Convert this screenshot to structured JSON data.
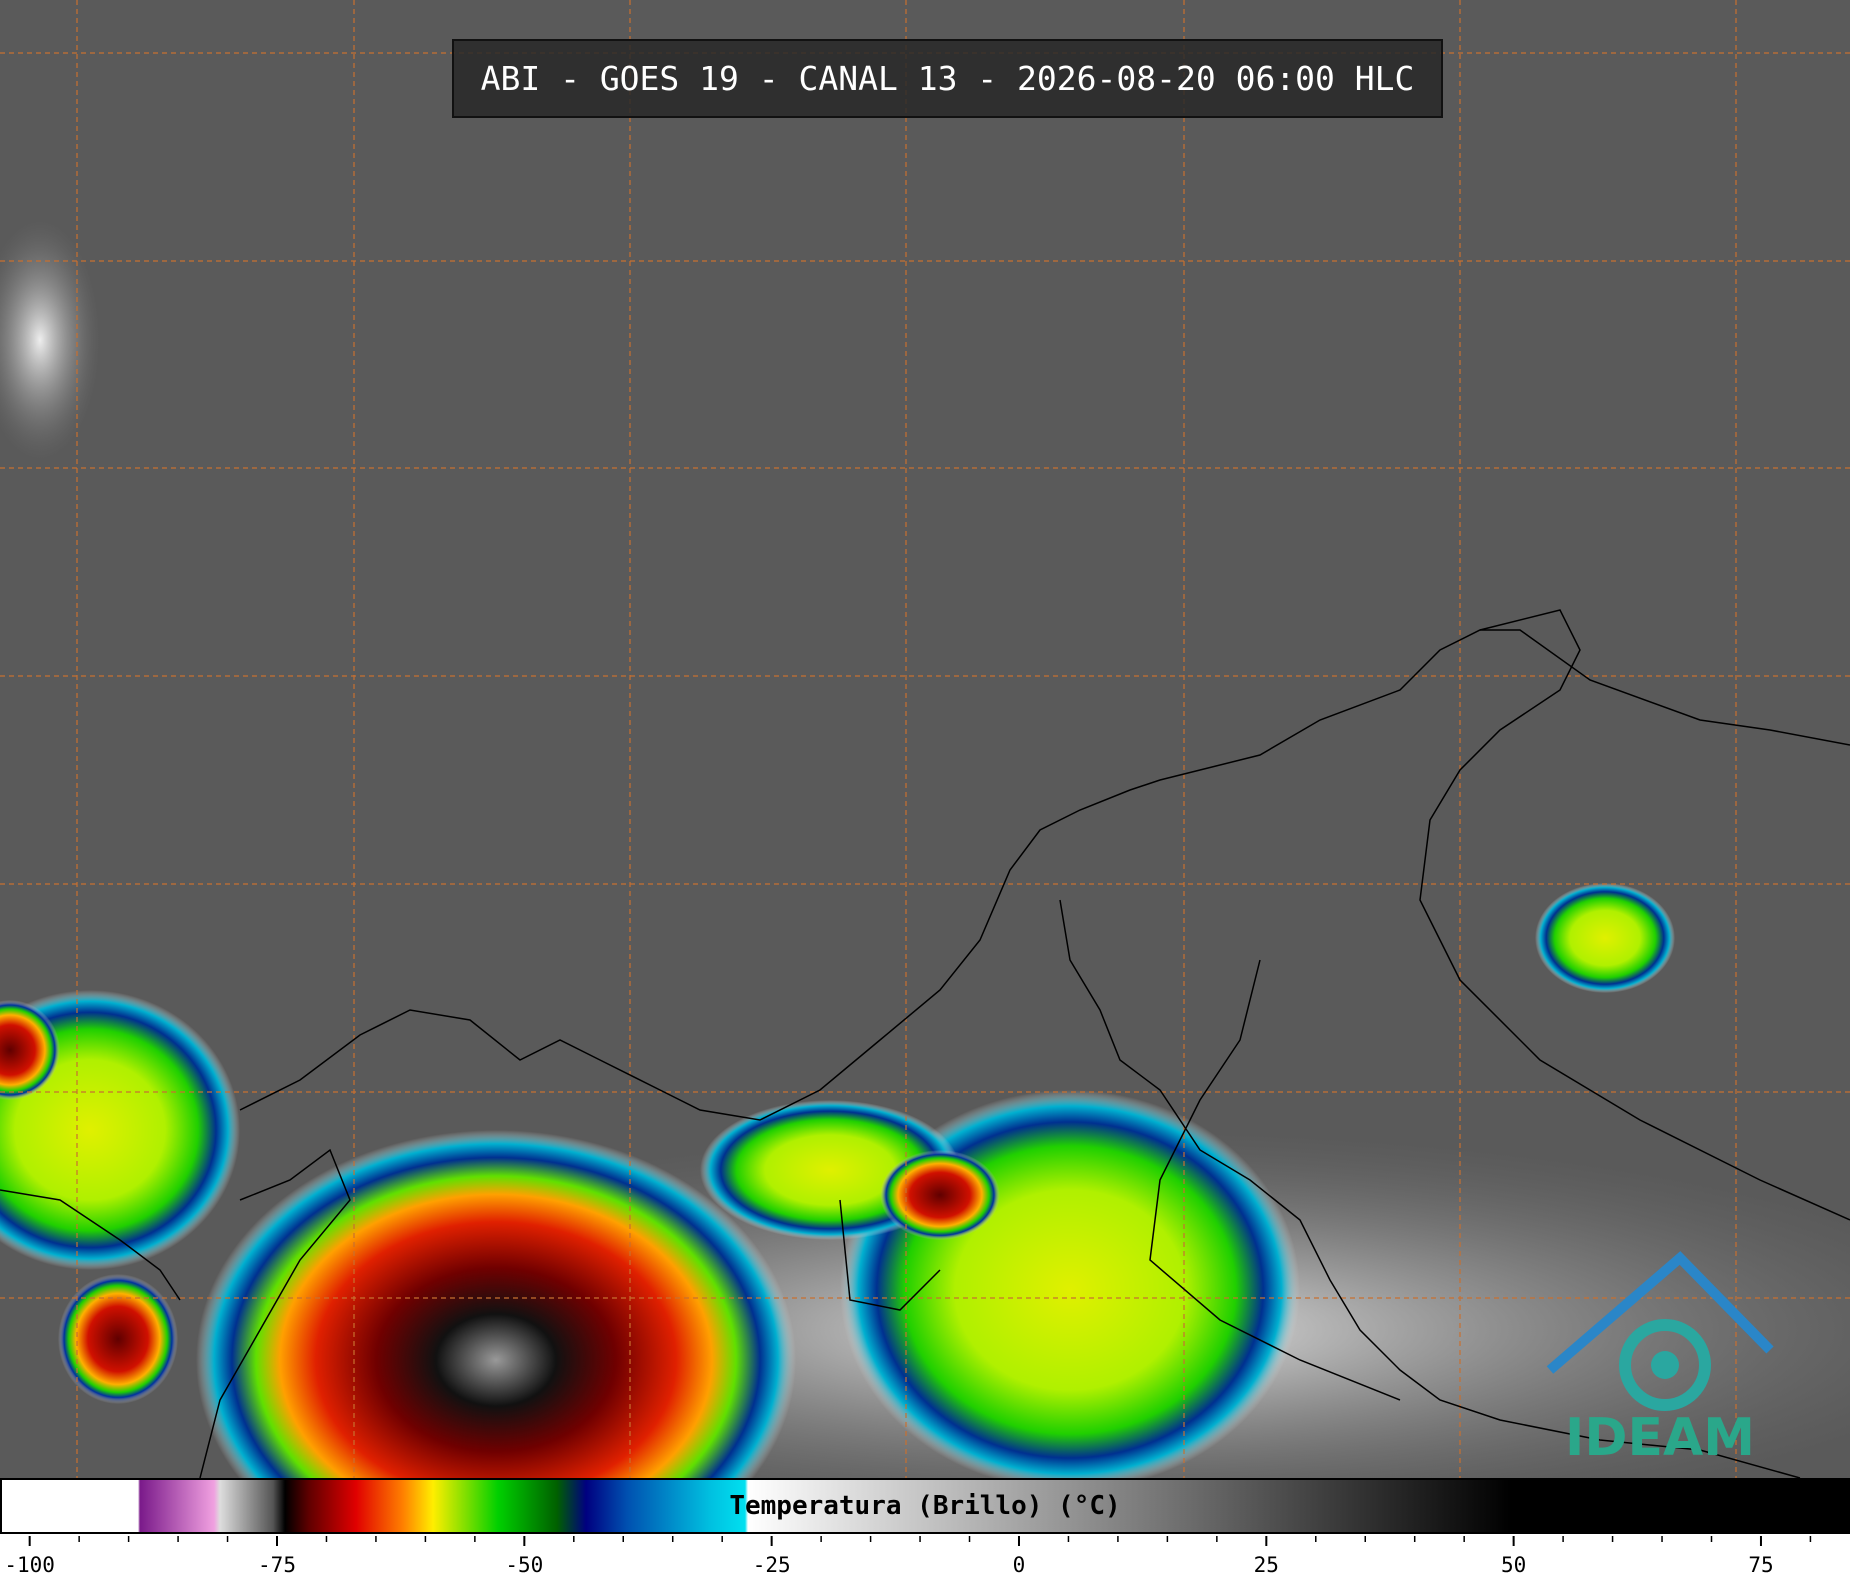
{
  "header": {
    "title": "ABI - GOES 19 - CANAL 13 - 2026-08-20 06:00 HLC"
  },
  "colorbar": {
    "label": "Temperatura (Brillo) (°C)",
    "range": [
      -103,
      84
    ],
    "ticks": [
      -100,
      -75,
      -50,
      -25,
      0,
      25,
      50,
      75
    ]
  },
  "logo": {
    "text": "IDEAM"
  }
}
